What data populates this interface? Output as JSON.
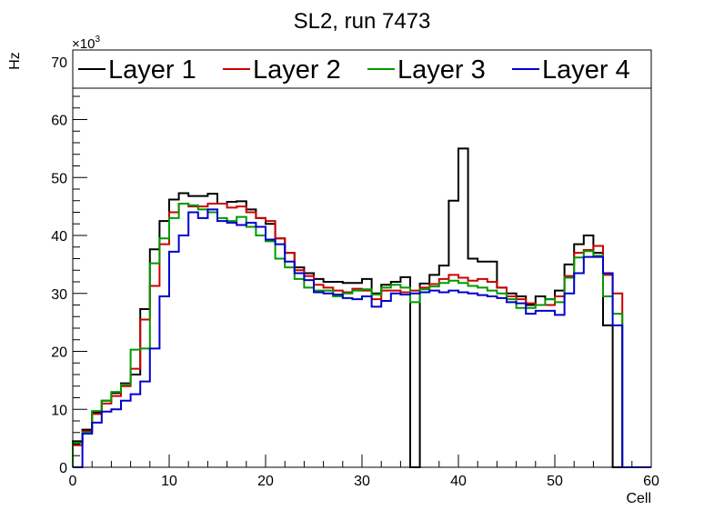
{
  "chart_data": {
    "type": "histogram-step",
    "title": "SL2, run 7473",
    "xlabel": "Cell",
    "ylabel": "Hz",
    "multiplier_base": "×10",
    "multiplier_exp": "3",
    "xlim": [
      0,
      60
    ],
    "ylim": [
      0,
      72
    ],
    "xticks": [
      0,
      10,
      20,
      30,
      40,
      50,
      60
    ],
    "yticks": [
      0,
      10,
      20,
      30,
      40,
      50,
      60,
      70
    ],
    "series": [
      {
        "name": "Layer 1",
        "color": "#000000",
        "values": [
          4.5,
          6.5,
          9.5,
          11.5,
          12.8,
          14.5,
          16,
          27.3,
          37.6,
          42.5,
          46.2,
          47.3,
          46.8,
          46.8,
          47.2,
          45.5,
          45.8,
          45.9,
          44.5,
          43,
          42,
          39.5,
          37,
          34.5,
          33.5,
          32.5,
          32,
          32,
          31.8,
          31.8,
          32.5,
          30,
          31.5,
          32,
          32.8,
          0,
          31.7,
          33.2,
          34.8,
          46,
          55,
          36,
          35.5,
          35.5,
          31,
          30,
          29.5,
          28,
          29.5,
          29,
          30.5,
          35,
          38.5,
          40,
          37,
          24.5,
          0,
          0,
          0,
          0
        ]
      },
      {
        "name": "Layer 2",
        "color": "#cc0000",
        "values": [
          3.8,
          6.2,
          9.2,
          11,
          12.3,
          14,
          17,
          25.5,
          31.3,
          38.5,
          44,
          45.5,
          45,
          45,
          45.5,
          45.5,
          44.8,
          45,
          44,
          43,
          42.5,
          39.5,
          37,
          34,
          33,
          31.5,
          31,
          30.5,
          30.2,
          30.8,
          30.5,
          29,
          30.5,
          30.5,
          30.2,
          30.5,
          31,
          31.6,
          32.5,
          33.2,
          32.7,
          32.2,
          32.5,
          32,
          31,
          29.5,
          29,
          28.3,
          28,
          28,
          29.5,
          33,
          37,
          37.5,
          38.2,
          33.2,
          30,
          0,
          0,
          0
        ]
      },
      {
        "name": "Layer 3",
        "color": "#009900",
        "values": [
          4.2,
          6,
          9.7,
          11.5,
          13,
          14.3,
          20.3,
          20.5,
          35.2,
          39.5,
          43,
          45.5,
          45.2,
          44.5,
          44,
          43,
          42.5,
          43.2,
          41.5,
          40,
          39,
          36,
          34.5,
          32.5,
          31,
          30.5,
          30.5,
          29.5,
          30,
          30.5,
          30.7,
          29.8,
          31,
          31.5,
          31,
          28.5,
          30.7,
          31.2,
          31.8,
          32.2,
          31.8,
          31.3,
          31,
          30.5,
          30,
          29,
          27.5,
          27.5,
          28,
          29,
          28.5,
          32.7,
          36.2,
          37.3,
          36.5,
          29.5,
          26.5,
          0,
          0,
          0
        ]
      },
      {
        "name": "Layer 4",
        "color": "#0000cc",
        "values": [
          0,
          5.8,
          7.7,
          9.6,
          10,
          11.5,
          12.6,
          14.8,
          20.5,
          29.5,
          37.2,
          40,
          44,
          43,
          44.5,
          42.5,
          42.2,
          41.8,
          42.2,
          41.5,
          39.3,
          38.5,
          35.5,
          33.5,
          32.3,
          30.2,
          30,
          29.8,
          29.2,
          29,
          29.5,
          27.7,
          28.7,
          30,
          29.8,
          30,
          30.2,
          30.5,
          30.2,
          30.5,
          30.2,
          30,
          29.7,
          29.5,
          29.2,
          28.5,
          28.3,
          26.5,
          27,
          27,
          26.3,
          30,
          33.5,
          36.3,
          36.3,
          33.5,
          24.5,
          0,
          0,
          0
        ]
      }
    ]
  }
}
